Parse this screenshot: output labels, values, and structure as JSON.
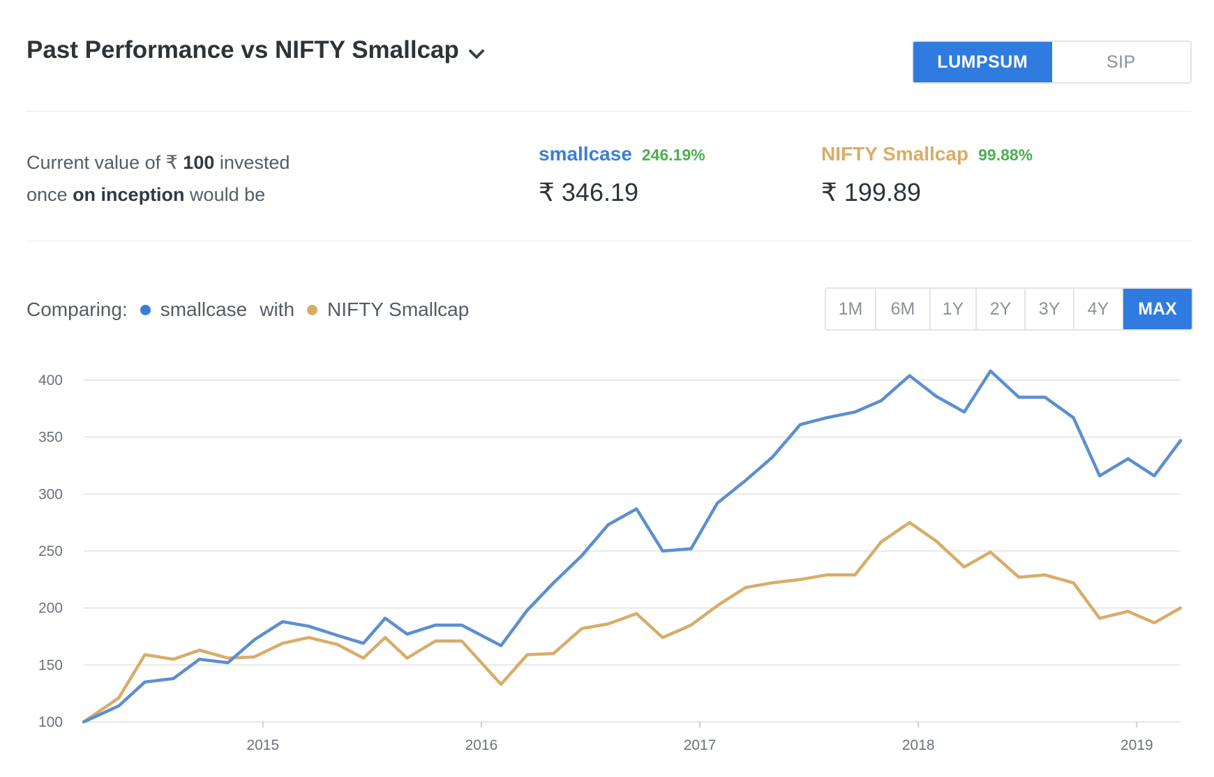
{
  "header": {
    "title": "Past Performance vs NIFTY Smallcap",
    "chevron_icon": "chevron-down-icon"
  },
  "mode_toggle": {
    "options": [
      "LUMPSUM",
      "SIP"
    ],
    "active": "LUMPSUM"
  },
  "summary": {
    "line1_prefix": "Current value of ₹",
    "line1_amount": "100",
    "line1_suffix": " invested",
    "line2_prefix": "once ",
    "line2_bold": "on inception",
    "line2_suffix": " would be",
    "smallcase": {
      "name": "smallcase",
      "pct": "246.19%",
      "value": "₹ 346.19",
      "color": "#3a7fd5"
    },
    "index": {
      "name": "NIFTY Smallcap",
      "pct": "99.88%",
      "value": "₹ 199.89",
      "color": "#d9ac6a"
    }
  },
  "compare": {
    "label": "Comparing:",
    "series1": "smallcase",
    "with": "with",
    "series2": "NIFTY Smallcap"
  },
  "range_buttons": {
    "options": [
      "1M",
      "6M",
      "1Y",
      "2Y",
      "3Y",
      "4Y",
      "MAX"
    ],
    "active": "MAX"
  },
  "colors": {
    "accent": "#2f7be0",
    "smallcase": "#5b8fcf",
    "index": "#d9ac6a",
    "positive": "#4caf50",
    "grid": "#e6e8eb"
  },
  "chart_data": {
    "type": "line",
    "ylim": [
      100,
      400
    ],
    "yticks": [
      100,
      150,
      200,
      250,
      300,
      350,
      400
    ],
    "xlim": [
      2014.18,
      2019.2
    ],
    "xticks": [
      2015,
      2016,
      2017,
      2018,
      2019
    ],
    "xticklabels": [
      "2015",
      "2016",
      "2017",
      "2018",
      "2019"
    ],
    "grid": true,
    "x": [
      2014.18,
      2014.34,
      2014.46,
      2014.59,
      2014.71,
      2014.84,
      2014.96,
      2015.09,
      2015.21,
      2015.34,
      2015.46,
      2015.56,
      2015.66,
      2015.79,
      2015.91,
      2016.09,
      2016.21,
      2016.33,
      2016.46,
      2016.58,
      2016.71,
      2016.83,
      2016.96,
      2017.08,
      2017.21,
      2017.33,
      2017.46,
      2017.58,
      2017.71,
      2017.83,
      2017.96,
      2018.08,
      2018.21,
      2018.33,
      2018.46,
      2018.58,
      2018.71,
      2018.83,
      2018.96,
      2019.08,
      2019.2
    ],
    "series": [
      {
        "name": "smallcase",
        "values": [
          100,
          114,
          135,
          138,
          155,
          152,
          172,
          188,
          184,
          176,
          169,
          191,
          177,
          185,
          185,
          167,
          198,
          222,
          246,
          273,
          287,
          250,
          252,
          292,
          312,
          332,
          361,
          367,
          372,
          382,
          404,
          386,
          372,
          408,
          385,
          385,
          367,
          316,
          331,
          316,
          347
        ]
      },
      {
        "name": "NIFTY Smallcap",
        "values": [
          100,
          121,
          159,
          155,
          163,
          156,
          157,
          169,
          174,
          168,
          156,
          174,
          156,
          171,
          171,
          133,
          159,
          160,
          182,
          186,
          195,
          174,
          185,
          202,
          218,
          222,
          225,
          229,
          229,
          258,
          275,
          259,
          236,
          249,
          227,
          229,
          222,
          191,
          197,
          187,
          200
        ]
      }
    ]
  }
}
